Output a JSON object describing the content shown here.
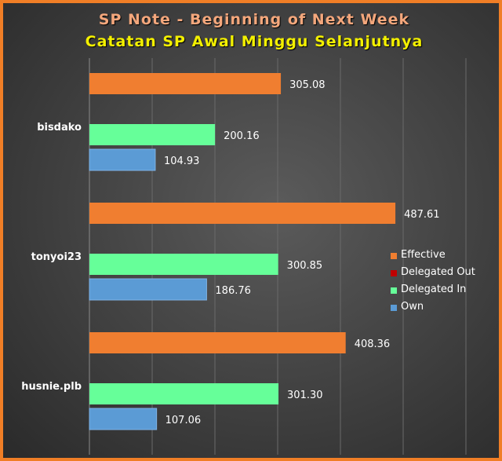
{
  "chart_data": {
    "type": "bar",
    "orientation": "horizontal",
    "title": "SP Note - Beginning of Next Week",
    "subtitle": "Catatan SP Awal Minggu Selanjutnya",
    "categories": [
      "bisdako",
      "tonyoi23",
      "husnie.plb"
    ],
    "series": [
      {
        "name": "Effective",
        "color": "#f07e30",
        "values": [
          305.08,
          487.61,
          408.36
        ]
      },
      {
        "name": "Delegated Out",
        "color": "#c00000",
        "values": [
          0,
          0,
          0
        ]
      },
      {
        "name": "Delegated In",
        "color": "#66ff99",
        "values": [
          200.16,
          300.85,
          301.3
        ]
      },
      {
        "name": "Own",
        "color": "#5b9bd5",
        "values": [
          104.93,
          186.76,
          107.06
        ]
      }
    ],
    "data_labels": {
      "bisdako": [
        "305.08",
        "200.16",
        "104.93"
      ],
      "tonyoi23": [
        "487.61",
        "300.85",
        "186.76"
      ],
      "husnie.plb": [
        "408.36",
        "301.30",
        "107.06"
      ]
    },
    "xlim": [
      0,
      600
    ],
    "grid": true,
    "legend_position": "right"
  }
}
